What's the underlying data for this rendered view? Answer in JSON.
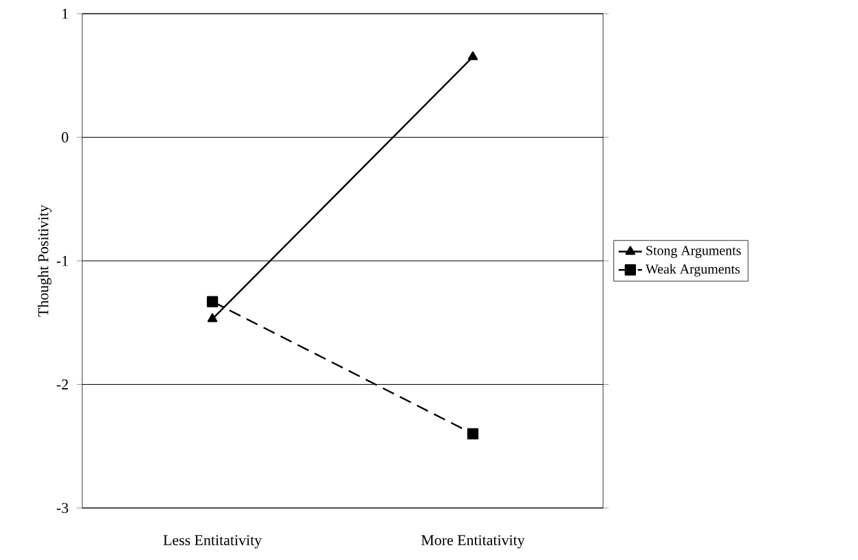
{
  "chart_data": {
    "type": "line",
    "ylabel": "Thought Positivity",
    "categories": [
      "Less Entitativity",
      "More Entitativity"
    ],
    "series": [
      {
        "name": "Stong Arguments",
        "color": "#000000",
        "marker": "triangle",
        "line_style": "solid",
        "values": [
          -1.47,
          0.65
        ]
      },
      {
        "name": "Weak Arguments",
        "color": "#000000",
        "marker": "square",
        "line_style": "dashed",
        "values": [
          -1.33,
          -2.4
        ]
      }
    ],
    "ylim": [
      -3,
      1
    ],
    "yticks": [
      -3,
      -2,
      -1,
      0,
      1
    ],
    "grid": "y",
    "legend": "right"
  }
}
